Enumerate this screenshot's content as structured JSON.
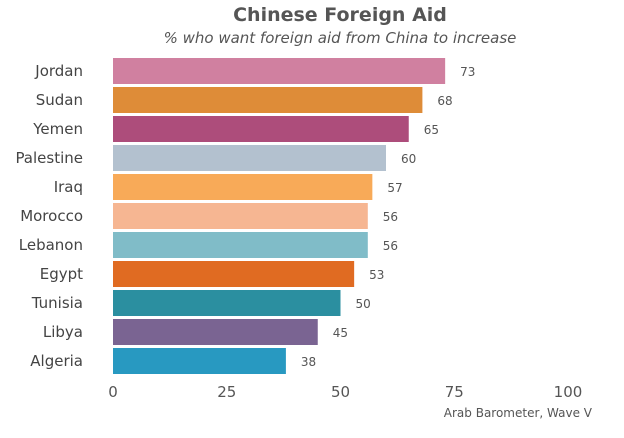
{
  "chart_data": {
    "type": "bar",
    "orientation": "horizontal",
    "title": "Chinese Foreign Aid",
    "subtitle": "% who want foreign aid from China to increase",
    "categories": [
      "Jordan",
      "Sudan",
      "Yemen",
      "Palestine",
      "Iraq",
      "Morocco",
      "Lebanon",
      "Egypt",
      "Tunisia",
      "Libya",
      "Algeria"
    ],
    "values": [
      73,
      68,
      65,
      60,
      57,
      56,
      56,
      53,
      50,
      45,
      38
    ],
    "colors": [
      "#d080a0",
      "#de8c38",
      "#ad4d7b",
      "#b3c1cf",
      "#f8aa58",
      "#f6b692",
      "#80bcc8",
      "#e06b22",
      "#2b8fa0",
      "#7a6492",
      "#2899c1"
    ],
    "xticks": [
      0,
      25,
      50,
      75,
      100
    ],
    "xlim": [
      0,
      100
    ],
    "grid": false,
    "source": "Arab Barometer, Wave V"
  }
}
